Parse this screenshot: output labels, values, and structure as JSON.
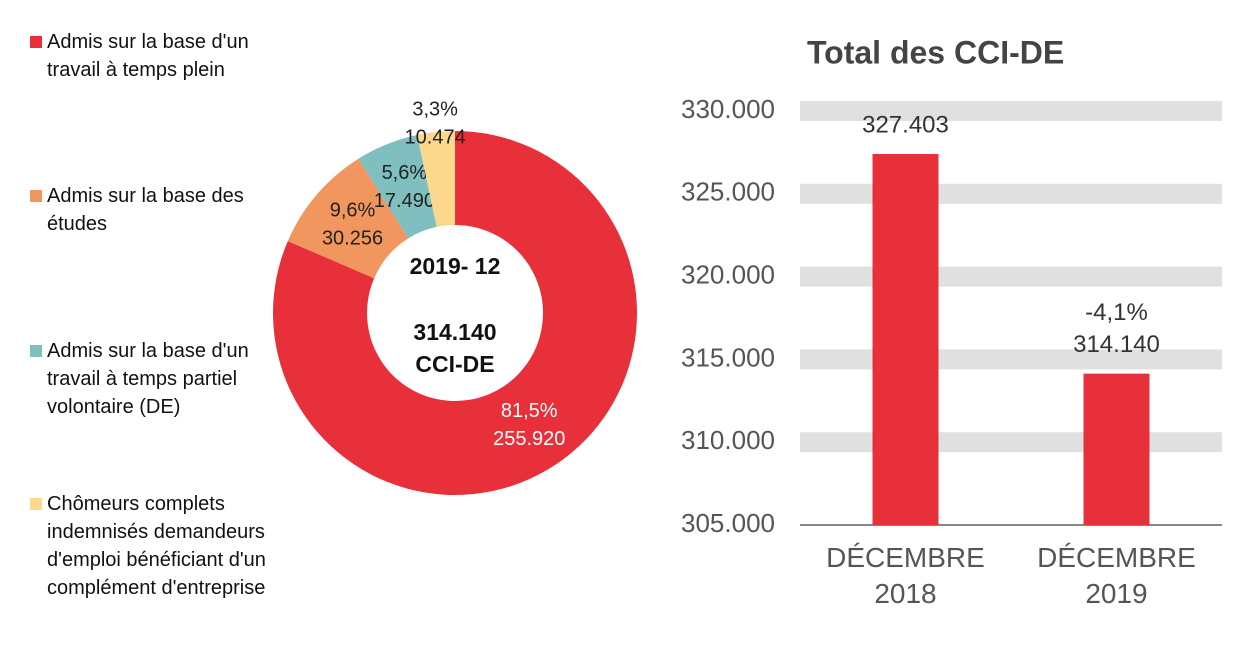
{
  "chart_data": [
    {
      "type": "donut",
      "categories": [
        "Admis sur la base d'un travail à temps plein",
        "Admis sur la base des études",
        "Admis sur la base d'un travail à temps partiel volontaire (DE)",
        "Chômeurs complets indemnisés demandeurs d'emploi bénéficiant d'un complément d'entreprise"
      ],
      "values": [
        255920,
        30256,
        17490,
        10474
      ],
      "value_labels": [
        "255.920",
        "30.256",
        "17.490",
        "10.474"
      ],
      "percent_labels": [
        "81,5%",
        "9,6%",
        "5,6%",
        "3,3%"
      ],
      "colors": [
        "#e8303a",
        "#f0965e",
        "#7fbfbf",
        "#fbd88c"
      ],
      "center_title": "2019- 12",
      "center_value": "314.140",
      "center_unit": "CCI-DE"
    },
    {
      "type": "bar",
      "title": "Total des CCI-DE",
      "categories": [
        "DÉCEMBRE 2018",
        "DÉCEMBRE 2019"
      ],
      "values": [
        327403,
        314140
      ],
      "value_labels": [
        "327.403",
        "314.140"
      ],
      "annotations": [
        null,
        "-4,1%"
      ],
      "color": "#e8303a",
      "ylim": [
        305000,
        330000
      ],
      "yticks": [
        {
          "value": 305000,
          "label": "305.000"
        },
        {
          "value": 310000,
          "label": "310.000"
        },
        {
          "value": 315000,
          "label": "315.000"
        },
        {
          "value": 320000,
          "label": "320.000"
        },
        {
          "value": 325000,
          "label": "325.000"
        },
        {
          "value": 330000,
          "label": "330.000"
        }
      ],
      "grid": true
    }
  ]
}
